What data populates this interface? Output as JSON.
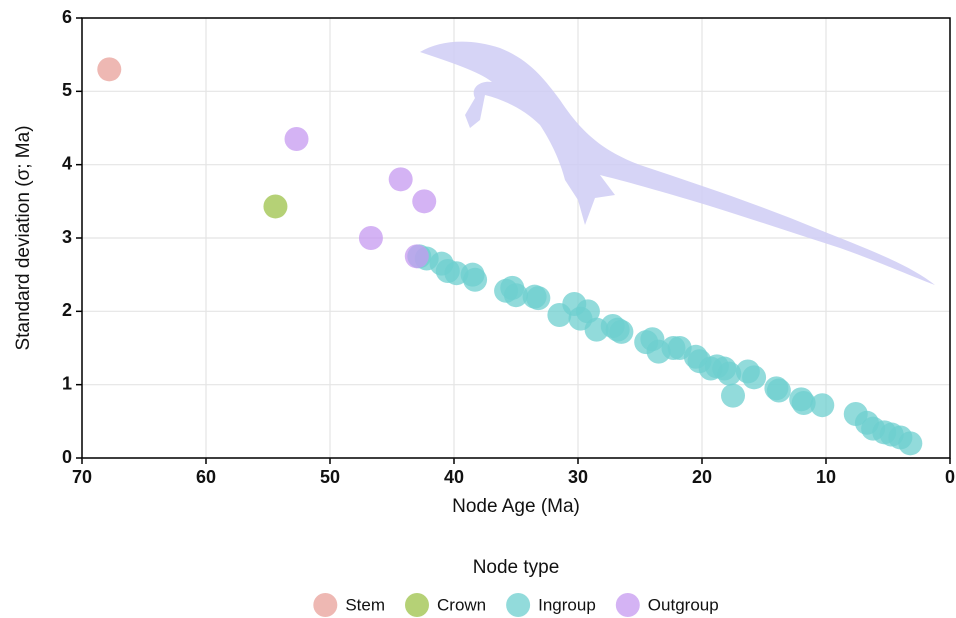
{
  "chart_data": {
    "type": "scatter",
    "x_label": "Node Age (Ma)",
    "y_label": "Standard deviation  (σ; Ma)",
    "legend_title": "Node type",
    "xlim": [
      70,
      0
    ],
    "ylim": [
      0,
      6
    ],
    "xticks": [
      70,
      60,
      50,
      40,
      30,
      20,
      10,
      0
    ],
    "yticks": [
      0,
      1,
      2,
      3,
      4,
      5,
      6
    ],
    "grid": true,
    "legend_position": "bottom",
    "series": [
      {
        "name": "Stem",
        "color": "#e8a09a",
        "x": [
          67.8
        ],
        "values": [
          5.3
        ]
      },
      {
        "name": "Crown",
        "color": "#9cc148",
        "x": [
          54.4
        ],
        "values": [
          3.43
        ]
      },
      {
        "name": "Ingroup",
        "color": "#6ecfcf",
        "x": [
          42.8,
          42.2,
          41,
          40.5,
          39.8,
          38.5,
          38.3,
          35.8,
          35.3,
          35,
          33.5,
          33.2,
          31.5,
          30.3,
          29.8,
          29.2,
          28.5,
          27.2,
          26.8,
          26.5,
          24.5,
          24,
          23.5,
          22.3,
          21.8,
          20.5,
          20.2,
          19.3,
          18.8,
          18.2,
          17.8,
          17.5,
          16.3,
          15.8,
          14,
          13.8,
          12,
          11.8,
          10.3,
          7.6,
          6.7,
          6.2,
          5.3,
          4.7,
          4,
          3.2
        ],
        "values": [
          2.75,
          2.72,
          2.65,
          2.55,
          2.52,
          2.5,
          2.43,
          2.28,
          2.32,
          2.22,
          2.2,
          2.18,
          1.95,
          2.1,
          1.9,
          2.0,
          1.75,
          1.8,
          1.75,
          1.72,
          1.58,
          1.62,
          1.45,
          1.5,
          1.5,
          1.38,
          1.32,
          1.22,
          1.25,
          1.22,
          1.15,
          0.85,
          1.18,
          1.1,
          0.95,
          0.92,
          0.8,
          0.75,
          0.72,
          0.6,
          0.48,
          0.4,
          0.35,
          0.32,
          0.28,
          0.2
        ]
      },
      {
        "name": "Outgroup",
        "color": "#c69af0",
        "x": [
          52.7,
          44.3,
          42.4,
          46.7,
          43
        ],
        "values": [
          4.35,
          3.8,
          3.5,
          3.0,
          2.75
        ]
      }
    ]
  }
}
